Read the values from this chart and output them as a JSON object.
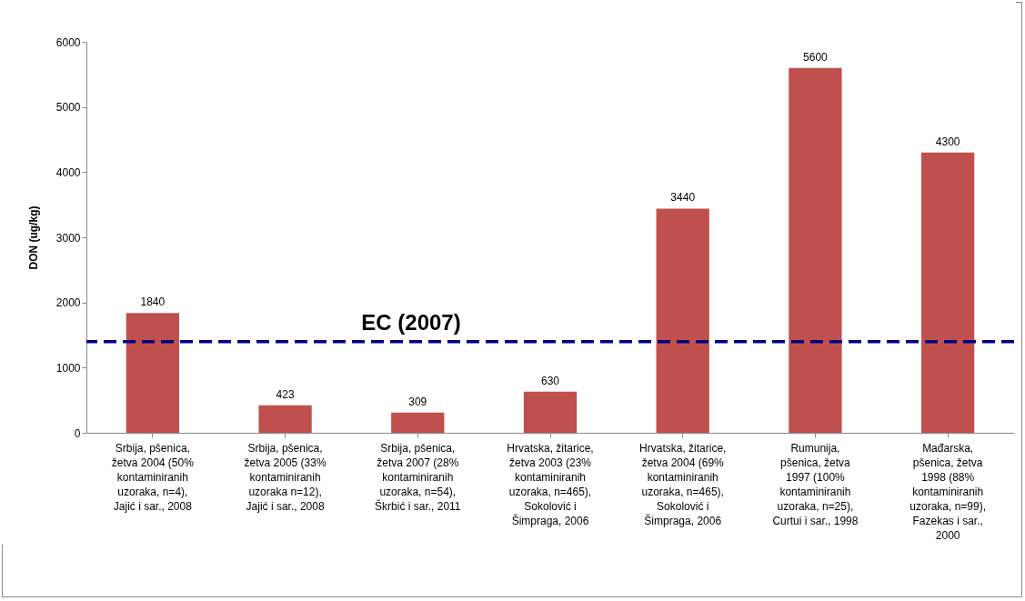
{
  "chart_data": {
    "type": "bar",
    "ylabel": "DON (ug/kg)",
    "categories": [
      "Srbija, pšenica,\nžetva 2004 (50%\nkontaminiranih\nuzoraka, n=4),\nJajić i sar., 2008",
      "Srbija, pšenica,\nžetva 2005 (33%\nkontaminiranih\nuzoraka n=12),\nJajić i sar., 2008",
      "Srbija, pšenica,\nžetva 2007 (28%\nkontaminiranih\nuzoraka, n=54),\nŠkrbić i sar., 2011",
      "Hrvatska, žitarice,\nžetva 2003 (23%\nkontaminiranih\nuzoraka, n=465),\nSokolović i\nŠimpraga, 2006",
      "Hrvatska, žitarice,\nžetva 2004 (69%\nkontaminiranih\nuzoraka, n=465),\nSokolović i\nŠimpraga, 2006",
      "Rumunija,\npšenica, žetva\n1997 (100%\nkontaminiranih\nuzoraka, n=25),\nCurtui i sar., 1998",
      "Mađarska,\npšenica, žetva\n1998 (88%\nkontaminiranih\nuzoraka, n=99),\nFazekas i sar.,\n2000"
    ],
    "values": [
      1840,
      423,
      309,
      630,
      3440,
      5600,
      4300
    ],
    "color": "#c0504d",
    "ylim": [
      0,
      6000
    ],
    "yticks": [
      0,
      1000,
      2000,
      3000,
      4000,
      5000,
      6000
    ],
    "grid": false,
    "data_labels": true,
    "ref_lines": [
      {
        "axis": "y",
        "value": 1400,
        "label": "EC (2007)",
        "color": "#000080",
        "line_style": "dashed"
      }
    ]
  }
}
